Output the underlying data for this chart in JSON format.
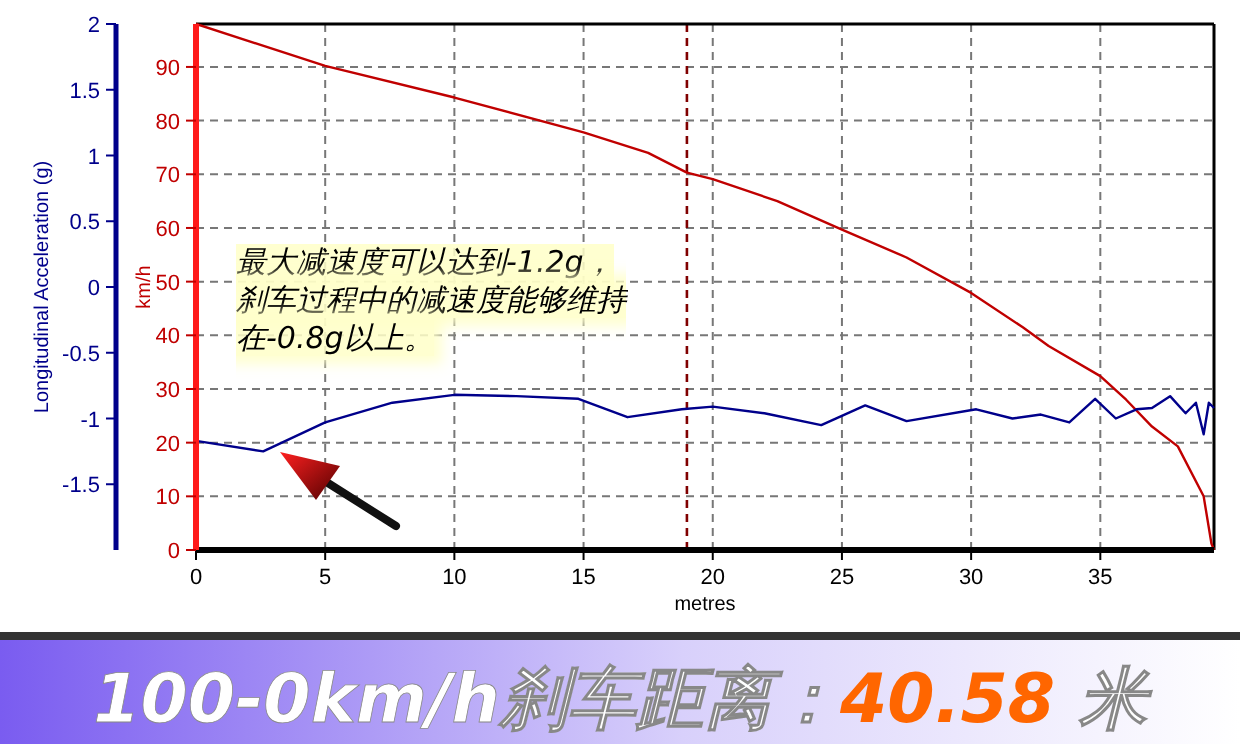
{
  "chart_data": {
    "type": "line",
    "title": "100-0km/h刹车距离：40.58 米",
    "xlabel": "metres",
    "ylabel": "km/h",
    "y2label": "Longitudinal Acceleration (g)",
    "annotations": [
      "最大减速度可以达到-1.2g，刹车过程中的减速度能够维持在-0.8g以上。"
    ],
    "xlim": [
      0,
      39.4
    ],
    "xticks": [
      0,
      5,
      10,
      15,
      20,
      25,
      30,
      35
    ],
    "ylim": [
      0,
      98
    ],
    "yticks": [
      0,
      10,
      20,
      30,
      40,
      50,
      60,
      70,
      80,
      90
    ],
    "y2lim": [
      -2,
      2
    ],
    "y2ticks": [
      -1.5,
      -1,
      -0.5,
      0,
      0.5,
      1,
      1.5,
      2
    ],
    "grid": true,
    "marker": "none",
    "line_style": "solid",
    "ref_lines": [
      {
        "axis": "x",
        "value": 19,
        "color": "#800000",
        "line_style": "dashed"
      }
    ],
    "series": [
      {
        "color": "#c00000",
        "x": [
          0,
          5,
          10,
          15,
          17.5,
          19,
          20,
          22.5,
          25,
          27.5,
          30,
          32,
          33,
          35,
          36,
          37,
          38,
          39,
          39.3,
          39.4
        ],
        "values": [
          98,
          90.2,
          84.3,
          77.8,
          74,
          70.3,
          69.1,
          65,
          59.7,
          54.5,
          47.9,
          41.5,
          38,
          32.4,
          28,
          23,
          19.3,
          10,
          1.2,
          0
        ]
      },
      {
        "color": "#00008b",
        "axis": "y2",
        "x": [
          0,
          2.6,
          5,
          7.6,
          10,
          12.4,
          14.8,
          16.7,
          18.8,
          20,
          22,
          24.2,
          25.9,
          27.5,
          30.2,
          31.6,
          32.7,
          33.8,
          34.8,
          35.6,
          36.4,
          37,
          37.7,
          38.3,
          38.7,
          39,
          39.2,
          39.4
        ],
        "values": [
          -1.17,
          -1.25,
          -1.03,
          -0.88,
          -0.82,
          -0.83,
          -0.85,
          -0.99,
          -0.93,
          -0.91,
          -0.96,
          -1.05,
          -0.9,
          -1.02,
          -0.93,
          -1.0,
          -0.97,
          -1.03,
          -0.85,
          -1.0,
          -0.93,
          -0.92,
          -0.83,
          -0.96,
          -0.88,
          -1.12,
          -0.88,
          -0.92
        ]
      }
    ]
  }
}
